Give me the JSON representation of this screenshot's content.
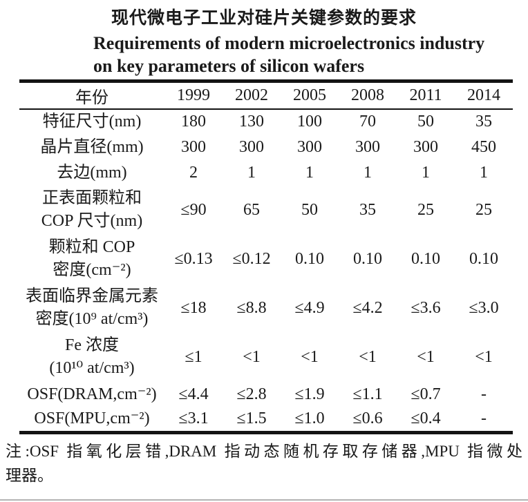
{
  "titles": {
    "zh": "现代微电子工业对硅片关键参数的要求",
    "en_line1": "Requirements of modern microelectronics industry",
    "en_line2": "on key parameters of silicon wafers"
  },
  "table": {
    "header": [
      "年份",
      "1999",
      "2002",
      "2005",
      "2008",
      "2011",
      "2014"
    ],
    "rows": [
      {
        "label": [
          "特征尺寸(nm)"
        ],
        "values": [
          "180",
          "130",
          "100",
          "70",
          "50",
          "35"
        ]
      },
      {
        "label": [
          "晶片直径(mm)"
        ],
        "values": [
          "300",
          "300",
          "300",
          "300",
          "300",
          "450"
        ]
      },
      {
        "label": [
          "去边(mm)"
        ],
        "values": [
          "2",
          "1",
          "1",
          "1",
          "1",
          "1"
        ]
      },
      {
        "label": [
          "正表面颗粒和",
          "COP 尺寸(nm)"
        ],
        "values": [
          "≤90",
          "65",
          "50",
          "35",
          "25",
          "25"
        ]
      },
      {
        "label": [
          "颗粒和 COP",
          "密度(cm⁻²)"
        ],
        "values": [
          "≤0.13",
          "≤0.12",
          "0.10",
          "0.10",
          "0.10",
          "0.10"
        ]
      },
      {
        "label": [
          "表面临界金属元素",
          "密度(10⁹ at/cm³)"
        ],
        "values": [
          "≤18",
          "≤8.8",
          "≤4.9",
          "≤4.2",
          "≤3.6",
          "≤3.0"
        ]
      },
      {
        "label": [
          "Fe 浓度",
          "(10¹⁰ at/cm³)"
        ],
        "values": [
          "≤1",
          "<1",
          "<1",
          "<1",
          "<1",
          "<1"
        ]
      },
      {
        "label": [
          "OSF(DRAM,cm⁻²)"
        ],
        "values": [
          "≤4.4",
          "≤2.8",
          "≤1.9",
          "≤1.1",
          "≤0.7",
          "-"
        ]
      },
      {
        "label": [
          "OSF(MPU,cm⁻²)"
        ],
        "values": [
          "≤3.1",
          "≤1.5",
          "≤1.0",
          "≤0.6",
          "≤0.4",
          "-"
        ]
      }
    ]
  },
  "note": {
    "line1": "注:OSF 指氧化层错,DRAM 指动态随机存取存储器,MPU 指微处",
    "line2": "理器。"
  },
  "colors": {
    "text": "#1a1a1a",
    "rule": "#131313",
    "scan_bottom_line": "#b3b3b3",
    "background": "#ffffff"
  }
}
